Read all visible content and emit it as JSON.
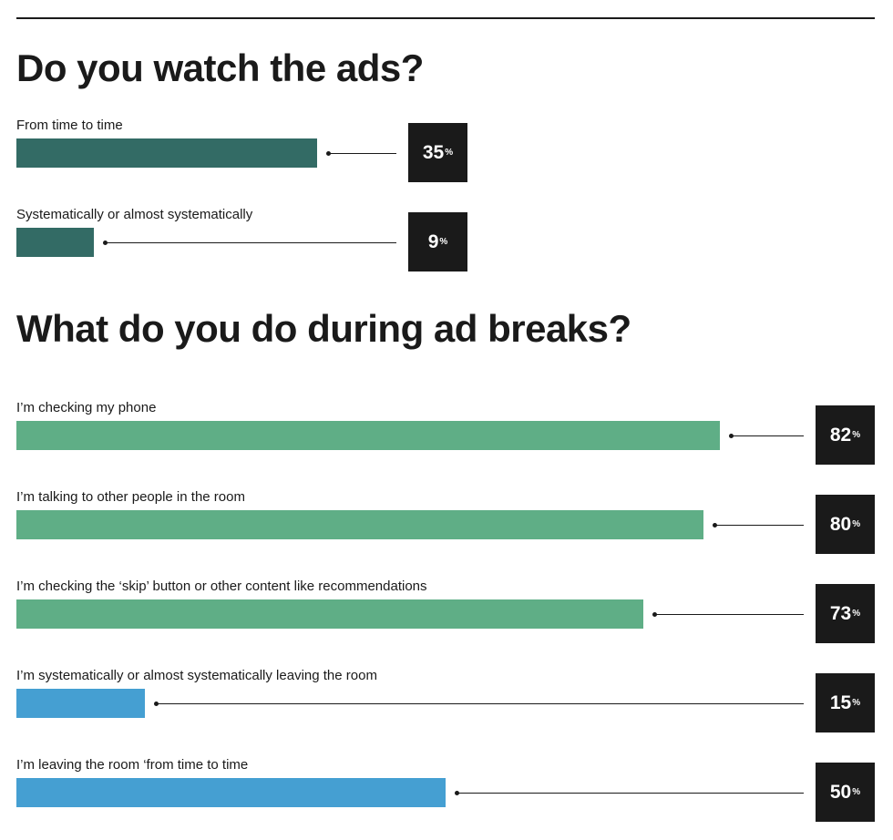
{
  "chart_data": [
    {
      "type": "bar",
      "orientation": "horizontal",
      "title": "Do you watch the ads?",
      "color": "#336b65",
      "unit": "%",
      "xlim": [
        0,
        100
      ],
      "categories": [
        "From time to time",
        "Systematically or almost systematically"
      ],
      "values": [
        35,
        9
      ]
    },
    {
      "type": "bar",
      "orientation": "horizontal",
      "title": "What do you do during ad breaks?",
      "unit": "%",
      "xlim": [
        0,
        100
      ],
      "categories": [
        "I’m checking my phone",
        "I’m talking to other people in the room",
        "I’m checking the ‘skip’ button or other content like recommendations",
        "I’m systematically or almost systematically leaving the room",
        "I’m leaving the room ‘from time to time"
      ],
      "values": [
        82,
        80,
        73,
        15,
        50
      ],
      "colors": [
        "#5fae86",
        "#5fae86",
        "#5fae86",
        "#459fd2",
        "#459fd2"
      ]
    }
  ]
}
